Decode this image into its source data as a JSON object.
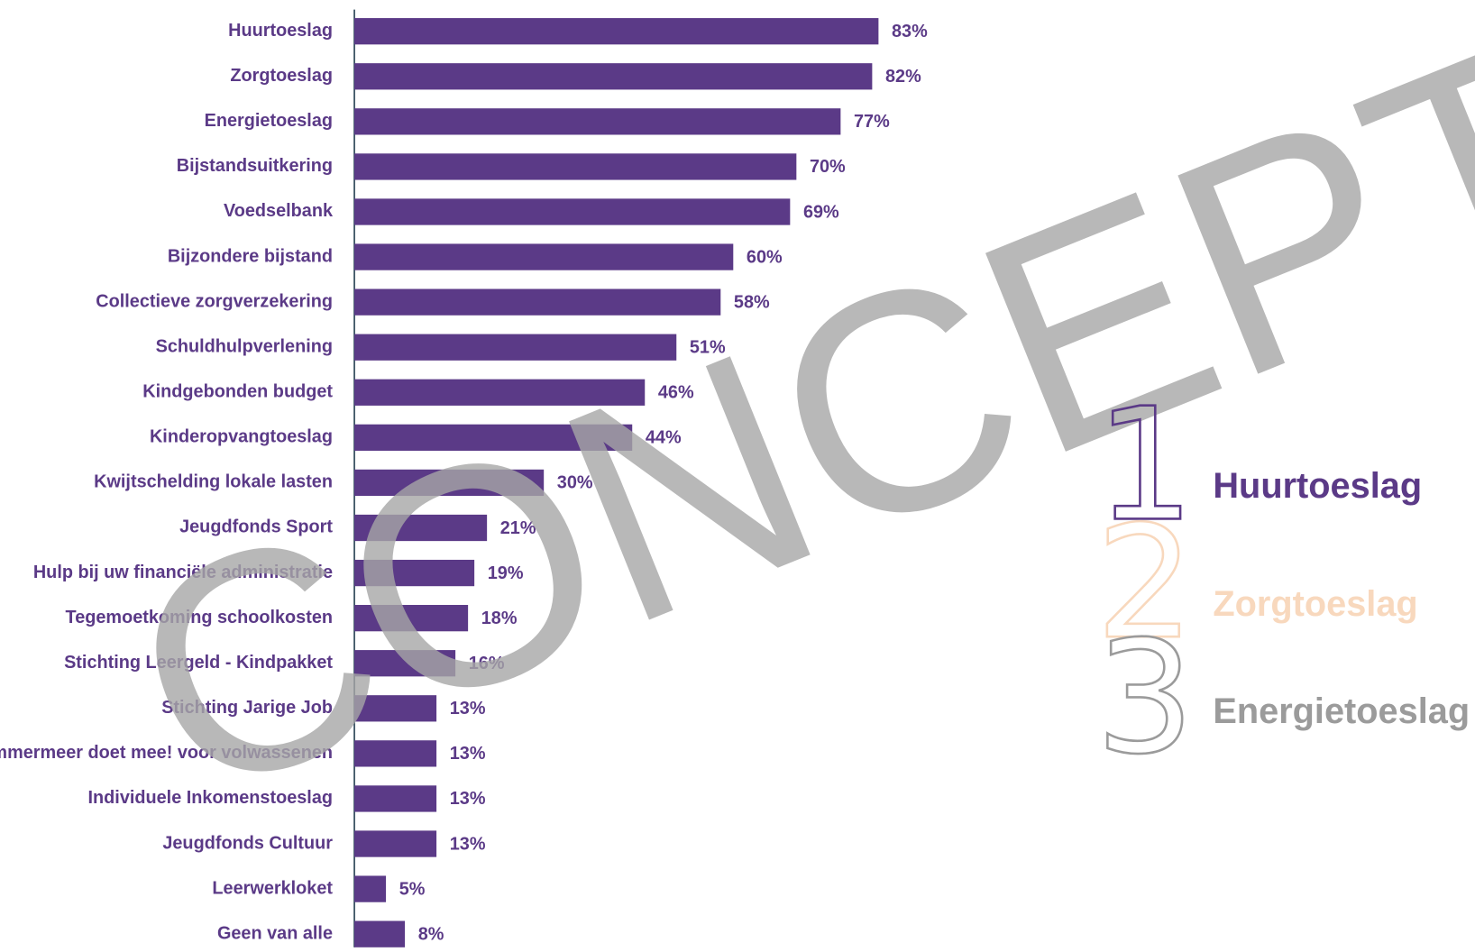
{
  "chart_data": {
    "type": "bar",
    "orientation": "horizontal",
    "categories": [
      "Huurtoeslag",
      "Zorgtoeslag",
      "Energietoeslag",
      "Bijstandsuitkering",
      "Voedselbank",
      "Bijzondere bijstand",
      "Collectieve zorgverzekering",
      "Schuldhulpverlening",
      "Kindgebonden budget",
      "Kinderopvangtoeslag",
      "Kwijtschelding lokale lasten",
      "Jeugdfonds Sport",
      "Hulp bij uw financiële administratie",
      "Tegemoetkoming schoolkosten",
      "Stichting Leergeld - Kindpakket",
      "Stichting Jarige Job",
      "Haarlemmermeer doet mee! voor volwassenen",
      "Individuele Inkomenstoeslag",
      "Jeugdfonds Cultuur",
      "Leerwerkloket",
      "Geen van alle"
    ],
    "values": [
      83,
      82,
      77,
      70,
      69,
      60,
      58,
      51,
      46,
      44,
      30,
      21,
      19,
      18,
      16,
      13,
      13,
      13,
      13,
      5,
      8
    ],
    "value_labels": [
      "83%",
      "82%",
      "77%",
      "70%",
      "69%",
      "60%",
      "58%",
      "51%",
      "46%",
      "44%",
      "30%",
      "21%",
      "19%",
      "18%",
      "16%",
      "13%",
      "13%",
      "13%",
      "13%",
      "5%",
      "8%"
    ],
    "color": "#5b3a87",
    "xlim": [
      0,
      100
    ]
  },
  "ranking": [
    {
      "rank": 1,
      "label": "Huurtoeslag",
      "color": "#5b3a87"
    },
    {
      "rank": 2,
      "label": "Zorgtoeslag",
      "color": "#f8d8bd"
    },
    {
      "rank": 3,
      "label": "Energietoeslag",
      "color": "#9b9b9b"
    }
  ],
  "watermark": "CONCEPT"
}
